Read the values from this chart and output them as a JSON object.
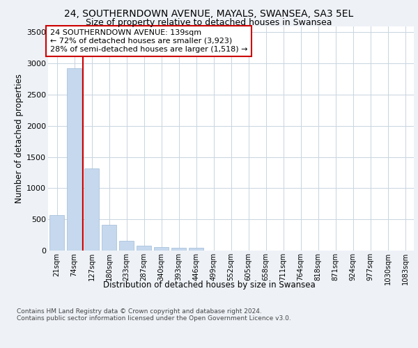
{
  "title": "24, SOUTHERNDOWN AVENUE, MAYALS, SWANSEA, SA3 5EL",
  "subtitle": "Size of property relative to detached houses in Swansea",
  "xlabel": "Distribution of detached houses by size in Swansea",
  "ylabel": "Number of detached properties",
  "categories": [
    "21sqm",
    "74sqm",
    "127sqm",
    "180sqm",
    "233sqm",
    "287sqm",
    "340sqm",
    "393sqm",
    "446sqm",
    "499sqm",
    "552sqm",
    "605sqm",
    "658sqm",
    "711sqm",
    "764sqm",
    "818sqm",
    "871sqm",
    "924sqm",
    "977sqm",
    "1030sqm",
    "1083sqm"
  ],
  "values": [
    570,
    2920,
    1320,
    410,
    155,
    75,
    55,
    50,
    40,
    0,
    0,
    0,
    0,
    0,
    0,
    0,
    0,
    0,
    0,
    0,
    0
  ],
  "bar_color": "#c5d8ed",
  "bar_edge_color": "#a0bcd8",
  "vline_color": "#cc0000",
  "vline_index": 1.5,
  "annotation_text": "24 SOUTHERNDOWN AVENUE: 139sqm\n← 72% of detached houses are smaller (3,923)\n28% of semi-detached houses are larger (1,518) →",
  "annotation_box_color": "#cc0000",
  "annotation_box_facecolor": "white",
  "ylim": [
    0,
    3600
  ],
  "yticks": [
    0,
    500,
    1000,
    1500,
    2000,
    2500,
    3000,
    3500
  ],
  "background_color": "#eef2f7",
  "plot_background": "white",
  "grid_color": "#c8d4e0",
  "title_fontsize": 10,
  "subtitle_fontsize": 9,
  "footer_text": "Contains HM Land Registry data © Crown copyright and database right 2024.\nContains public sector information licensed under the Open Government Licence v3.0."
}
